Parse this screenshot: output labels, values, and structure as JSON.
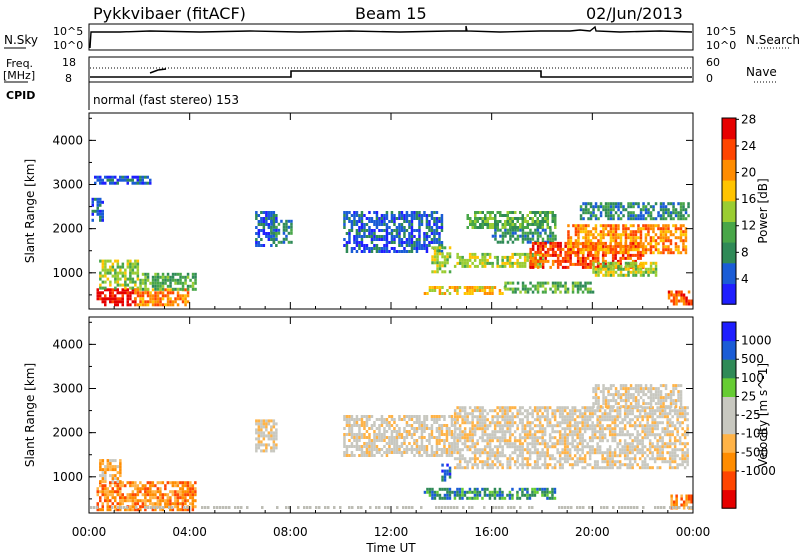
{
  "header": {
    "radar": "Pykkvibaer (fitACF)",
    "beam": "Beam 15",
    "date": "02/Jun/2013"
  },
  "nsky_panel": {
    "left_label": "N.Sky",
    "left_ticks": [
      "10^5",
      "10^0"
    ],
    "right_label": "N.Search",
    "right_ticks": [
      "10^5",
      "10^0"
    ]
  },
  "freq_panel": {
    "left_label_1": "Freq.",
    "left_label_2": "[MHz]",
    "left_ticks": [
      "18",
      "8"
    ],
    "right_label": "Nave",
    "right_ticks": [
      "60",
      "0"
    ],
    "cpid_label": "CPID",
    "program": "normal (fast stereo) 153"
  },
  "colors": {
    "power": [
      "#1f1fff",
      "#1a5cd6",
      "#2f8a57",
      "#48a648",
      "#9acd32",
      "#ffc400",
      "#ff8c00",
      "#ff4500",
      "#e60000"
    ],
    "velocity": [
      "#e60000",
      "#ff4500",
      "#ff8c00",
      "#ffb347",
      "#c8c8c0",
      "#c8c8c0",
      "#66cc33",
      "#2f8a57",
      "#1a5cd6",
      "#1f1fff"
    ]
  },
  "chart_data": [
    {
      "type": "heatmap",
      "panel": "power",
      "ylabel": "Slant Range [km]",
      "y_ticks": [
        1000,
        2000,
        3000,
        4000
      ],
      "ylim": [
        180,
        4620
      ],
      "xlim_hours": [
        0,
        24
      ],
      "x_ticks": [
        "00:00",
        "04:00",
        "08:00",
        "12:00",
        "16:00",
        "20:00",
        "00:00"
      ],
      "colorbar_label": "Power [dB]",
      "colorbar_ticks": [
        "4",
        "8",
        "12",
        "16",
        "20",
        "24",
        "28"
      ],
      "bands": [
        {
          "t0": 0.3,
          "t1": 1.8,
          "r0": 250,
          "r1": 650,
          "level": 8
        },
        {
          "t0": 0.4,
          "t1": 1.9,
          "r0": 650,
          "r1": 1300,
          "level": 4
        },
        {
          "t0": 1.8,
          "t1": 3.9,
          "r0": 280,
          "r1": 650,
          "level": 6
        },
        {
          "t0": 2.0,
          "t1": 4.2,
          "r0": 650,
          "r1": 1000,
          "level": 3
        },
        {
          "t0": 0.1,
          "t1": 0.5,
          "r0": 2200,
          "r1": 2700,
          "level": 1
        },
        {
          "t0": 0.2,
          "t1": 2.4,
          "r0": 3000,
          "r1": 3200,
          "level": 1
        },
        {
          "t0": 6.6,
          "t1": 7.4,
          "r0": 1600,
          "r1": 2400,
          "level": 1
        },
        {
          "t0": 7.2,
          "t1": 8.0,
          "r0": 1700,
          "r1": 2200,
          "level": 2
        },
        {
          "t0": 10.1,
          "t1": 14.0,
          "r0": 1500,
          "r1": 2400,
          "level": 1
        },
        {
          "t0": 13.3,
          "t1": 16.5,
          "r0": 500,
          "r1": 700,
          "level": 5
        },
        {
          "t0": 13.6,
          "t1": 14.3,
          "r0": 1000,
          "r1": 1600,
          "level": 4
        },
        {
          "t0": 14.5,
          "t1": 18.0,
          "r0": 1150,
          "r1": 1450,
          "level": 4
        },
        {
          "t0": 15.0,
          "t1": 18.5,
          "r0": 2000,
          "r1": 2400,
          "level": 3
        },
        {
          "t0": 16.0,
          "t1": 18.5,
          "r0": 1700,
          "r1": 2000,
          "level": 2
        },
        {
          "t0": 17.5,
          "t1": 22.0,
          "r0": 1100,
          "r1": 1700,
          "level": 7
        },
        {
          "t0": 19.0,
          "t1": 23.7,
          "r0": 1450,
          "r1": 2100,
          "level": 6
        },
        {
          "t0": 19.5,
          "t1": 23.8,
          "r0": 2200,
          "r1": 2600,
          "level": 2
        },
        {
          "t0": 20.0,
          "t1": 22.5,
          "r0": 950,
          "r1": 1250,
          "level": 4
        },
        {
          "t0": 23.0,
          "t1": 23.9,
          "r0": 300,
          "r1": 600,
          "level": 7
        },
        {
          "t0": 16.5,
          "t1": 20.0,
          "r0": 550,
          "r1": 800,
          "level": 3
        }
      ]
    },
    {
      "type": "heatmap",
      "panel": "velocity",
      "ylabel": "Slant Range [km]",
      "xlabel": "Time UT",
      "y_ticks": [
        1000,
        2000,
        3000,
        4000
      ],
      "ylim": [
        180,
        4620
      ],
      "xlim_hours": [
        0,
        24
      ],
      "x_ticks": [
        "00:00",
        "04:00",
        "08:00",
        "12:00",
        "16:00",
        "20:00",
        "00:00"
      ],
      "colorbar_label": "Velocity [m s^-1]",
      "colorbar_ticks": [
        "1000",
        "500",
        "100",
        "25",
        "-25",
        "-100",
        "-500",
        "-1000"
      ],
      "bands": [
        {
          "t0": 0.3,
          "t1": 4.2,
          "r0": 250,
          "r1": 900,
          "level": 2
        },
        {
          "t0": 0.4,
          "t1": 1.2,
          "r0": 900,
          "r1": 1400,
          "level": 3
        },
        {
          "t0": 6.6,
          "t1": 7.4,
          "r0": 1600,
          "r1": 2300,
          "level": 4
        },
        {
          "t0": 10.1,
          "t1": 14.5,
          "r0": 1500,
          "r1": 2400,
          "level": 4
        },
        {
          "t0": 13.3,
          "t1": 18.5,
          "r0": 500,
          "r1": 750,
          "level": 7
        },
        {
          "t0": 14.0,
          "t1": 14.3,
          "r0": 900,
          "r1": 1300,
          "level": 8
        },
        {
          "t0": 14.5,
          "t1": 23.8,
          "r0": 1200,
          "r1": 2600,
          "level": 4
        },
        {
          "t0": 20.0,
          "t1": 23.5,
          "r0": 2600,
          "r1": 3100,
          "level": 4
        },
        {
          "t0": 23.1,
          "t1": 23.9,
          "r0": 300,
          "r1": 600,
          "level": 2
        }
      ]
    }
  ]
}
